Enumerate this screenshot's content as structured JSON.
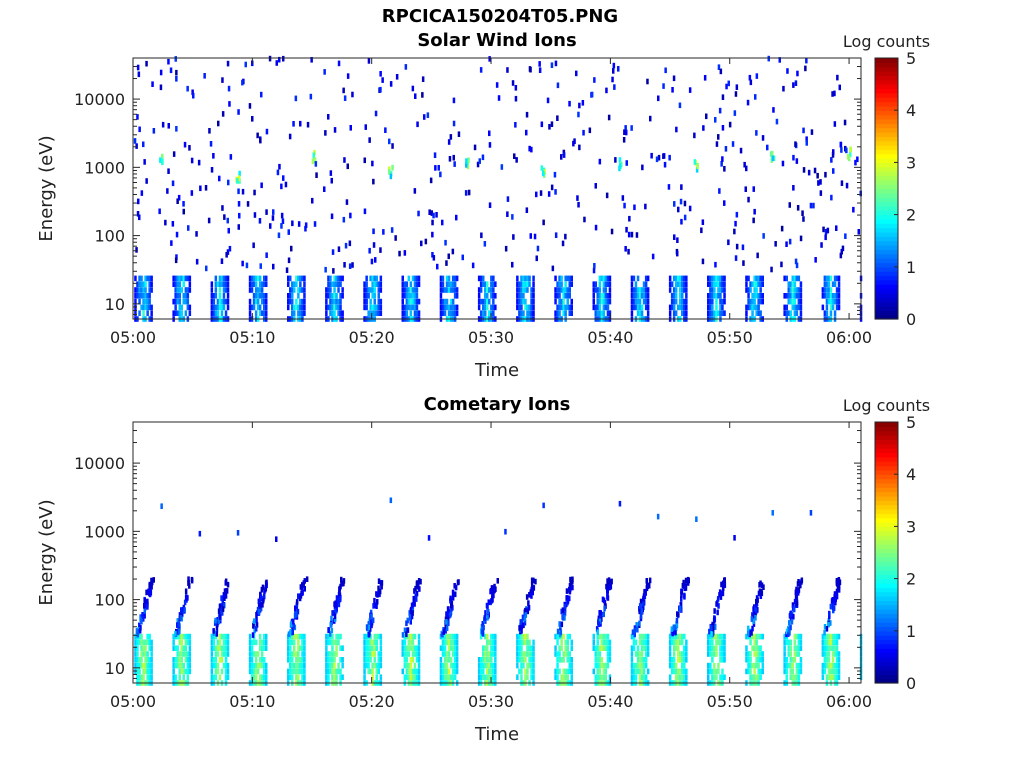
{
  "figure": {
    "title": "RPCICA150204T05.PNG"
  },
  "chart_data": [
    {
      "type": "heatmap",
      "title": "Solar Wind Ions",
      "xlabel": "Time",
      "ylabel": "Energy (eV)",
      "x_ticks": [
        "05:00",
        "05:10",
        "05:20",
        "05:30",
        "05:40",
        "05:50",
        "06:00"
      ],
      "xlim": [
        "05:00",
        "06:01"
      ],
      "y_scale": "log",
      "y_ticks": [
        10,
        100,
        1000,
        10000
      ],
      "y_tick_labels": [
        "10",
        "100",
        "1000",
        "10000"
      ],
      "ylim": [
        6,
        40000
      ],
      "colorbar": {
        "label": "Log counts",
        "range": [
          0,
          5
        ],
        "ticks": [
          "0",
          "1",
          "2",
          "3",
          "4",
          "5"
        ],
        "colormap": "jet"
      },
      "grid": false,
      "features": {
        "low_energy_bursts": {
          "energy_range_eV": [
            6,
            28
          ],
          "log_counts_range": [
            0.5,
            2.2
          ],
          "period_min": 3.2
        },
        "solar_wind_peaks": {
          "energy_range_eV": [
            700,
            1700
          ],
          "log_counts_range": [
            1.5,
            3.0
          ]
        },
        "sparse_background": {
          "energy_range_eV": [
            30,
            40000
          ],
          "log_counts_range": [
            0,
            1
          ]
        }
      }
    },
    {
      "type": "heatmap",
      "title": "Cometary Ions",
      "xlabel": "Time",
      "ylabel": "Energy (eV)",
      "x_ticks": [
        "05:00",
        "05:10",
        "05:20",
        "05:30",
        "05:40",
        "05:50",
        "06:00"
      ],
      "xlim": [
        "05:00",
        "06:01"
      ],
      "y_scale": "log",
      "y_ticks": [
        10,
        100,
        1000,
        10000
      ],
      "y_tick_labels": [
        "10",
        "100",
        "1000",
        "10000"
      ],
      "ylim": [
        6,
        40000
      ],
      "colorbar": {
        "label": "Log counts",
        "range": [
          0,
          5
        ],
        "ticks": [
          "0",
          "1",
          "2",
          "3",
          "4",
          "5"
        ],
        "colormap": "jet"
      },
      "grid": false,
      "features": {
        "low_energy_bursts": {
          "energy_range_eV": [
            6,
            30
          ],
          "log_counts_range": [
            1.5,
            3.0
          ],
          "period_min": 3.2
        },
        "dispersed_tails": {
          "energy_range_eV": [
            30,
            200
          ],
          "log_counts_range": [
            0.3,
            1.8
          ]
        },
        "sparse_high_energy": {
          "energy_range_eV": [
            600,
            3000
          ],
          "log_counts_range": [
            0,
            1.5
          ]
        }
      }
    }
  ]
}
